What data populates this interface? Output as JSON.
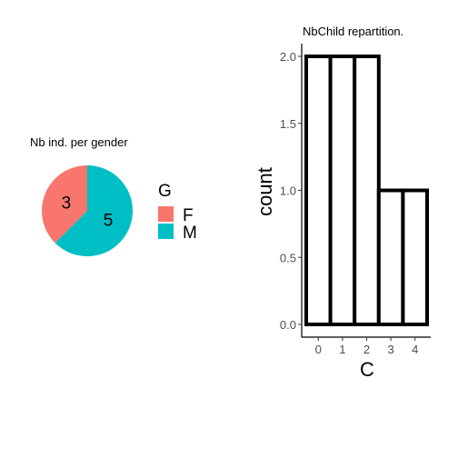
{
  "chart_data": [
    {
      "type": "pie",
      "title": "Nb ind. per gender",
      "legend": {
        "title": "G",
        "position": "right",
        "entries": [
          {
            "label": "F",
            "color": "#F8766D"
          },
          {
            "label": "M",
            "color": "#00BFC4"
          }
        ]
      },
      "slices": [
        {
          "label": "F",
          "value": 3,
          "data_label": "3",
          "color": "#F8766D"
        },
        {
          "label": "M",
          "value": 5,
          "data_label": "5",
          "color": "#00BFC4"
        }
      ]
    },
    {
      "type": "bar",
      "title": "NbChild repartition.",
      "xlabel": "C",
      "ylabel": "count",
      "categories": [
        "0",
        "1",
        "2",
        "3",
        "4"
      ],
      "values": [
        2,
        2,
        2,
        1,
        1
      ],
      "ylim": [
        0,
        2
      ],
      "yticks": [
        "0.0",
        "0.5",
        "1.0",
        "1.5",
        "2.0"
      ],
      "grid": false,
      "bar_fill": "#ffffff",
      "bar_outline": "#000000"
    }
  ]
}
